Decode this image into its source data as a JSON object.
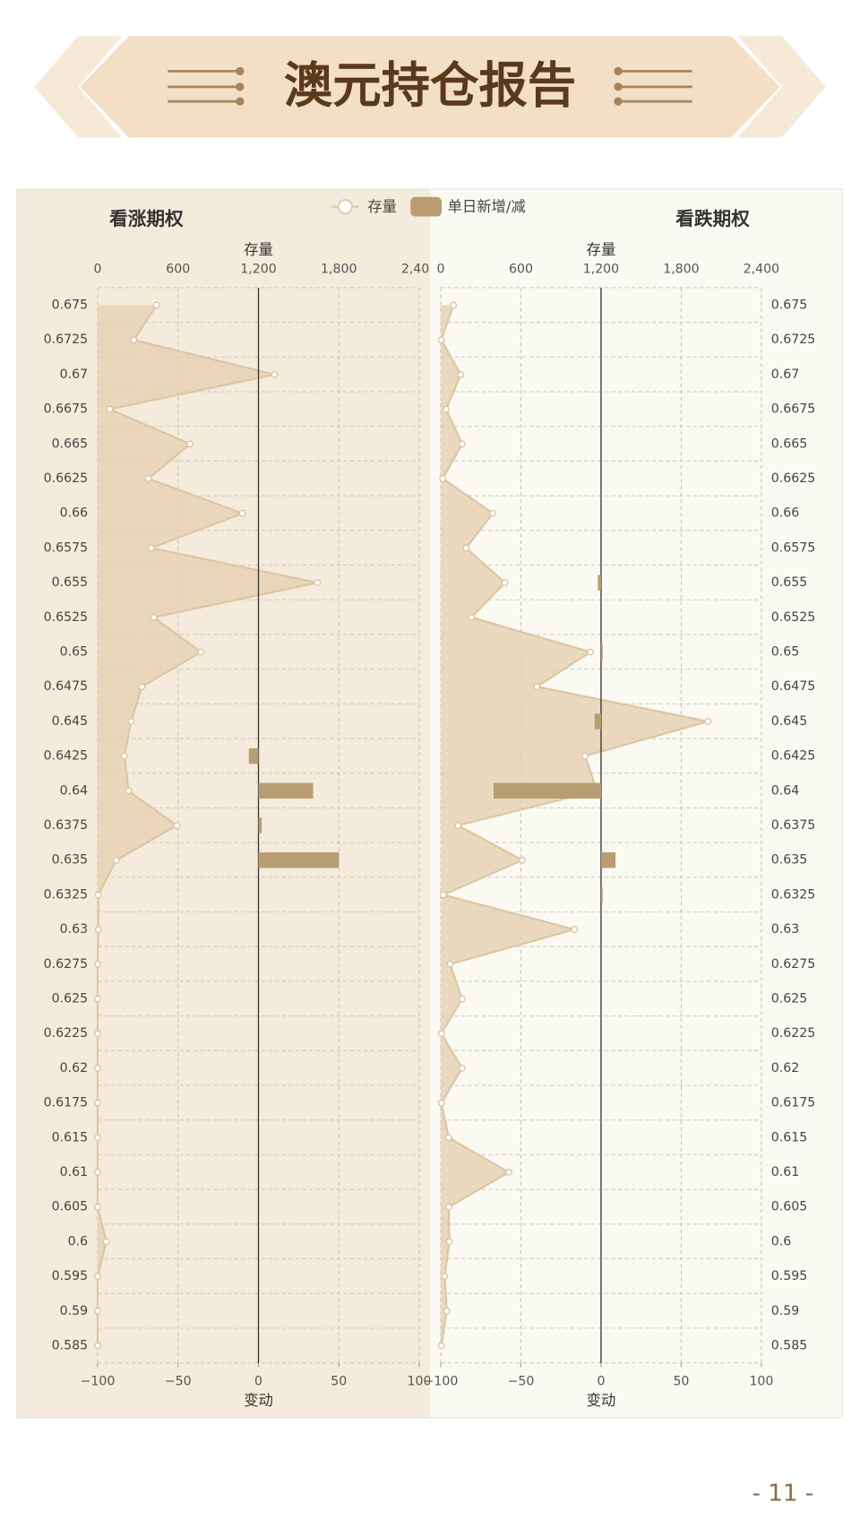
{
  "header": {
    "title": "澳元持仓报告",
    "page": "- 11 -"
  },
  "chart_data": [
    {
      "type": "combo",
      "title": "看涨期权",
      "categories": [
        "0.675",
        "0.6725",
        "0.67",
        "0.6675",
        "0.665",
        "0.6625",
        "0.66",
        "0.6575",
        "0.655",
        "0.6525",
        "0.65",
        "0.6475",
        "0.645",
        "0.6425",
        "0.64",
        "0.6375",
        "0.635",
        "0.6325",
        "0.63",
        "0.6275",
        "0.625",
        "0.6225",
        "0.62",
        "0.6175",
        "0.615",
        "0.61",
        "0.605",
        "0.6",
        "0.595",
        "0.59",
        "0.585"
      ],
      "xlabel": "存量",
      "xlim": [
        0,
        2400
      ],
      "xticks": [
        0,
        600,
        {
          "value": 1200,
          "label": "1,200"
        },
        {
          "value": 1800,
          "label": "1,800"
        },
        {
          "value": 2400,
          "label": "2,400"
        }
      ],
      "x2label": "变动",
      "x2lim": [
        -100,
        100
      ],
      "x2ticks": [
        {
          "value": -100,
          "label": "−100"
        },
        {
          "value": -50,
          "label": "−50"
        },
        0,
        50,
        100
      ],
      "category_axis": "left",
      "background": "#f5ebdc",
      "series": [
        {
          "name": "存量",
          "type": "area",
          "color": "#e6d2b5",
          "values": [
            440,
            270,
            1320,
            90,
            690,
            380,
            1080,
            400,
            1640,
            420,
            770,
            330,
            250,
            200,
            230,
            590,
            140,
            5,
            5,
            0,
            0,
            0,
            0,
            0,
            0,
            0,
            0,
            65,
            0,
            0,
            0
          ]
        },
        {
          "name": "单日新增/减",
          "type": "bar",
          "axis": "x2",
          "color": "#b99d72",
          "values": [
            0,
            0,
            0,
            0,
            0,
            0,
            0,
            0,
            0,
            0,
            0,
            0,
            0,
            -6,
            34,
            2,
            50,
            0,
            0,
            0,
            0,
            0,
            0,
            0,
            0,
            0,
            0,
            0,
            0,
            0,
            0
          ]
        }
      ]
    },
    {
      "type": "combo",
      "title": "看跌期权",
      "categories": [
        "0.675",
        "0.6725",
        "0.67",
        "0.6675",
        "0.665",
        "0.6625",
        "0.66",
        "0.6575",
        "0.655",
        "0.6525",
        "0.65",
        "0.6475",
        "0.645",
        "0.6425",
        "0.64",
        "0.6375",
        "0.635",
        "0.6325",
        "0.63",
        "0.6275",
        "0.625",
        "0.6225",
        "0.62",
        "0.6175",
        "0.615",
        "0.61",
        "0.605",
        "0.6",
        "0.595",
        "0.59",
        "0.585"
      ],
      "xlabel": "存量",
      "xlim": [
        0,
        2400
      ],
      "xticks": [
        0,
        600,
        {
          "value": 1200,
          "label": "1,200"
        },
        {
          "value": 1800,
          "label": "1,800"
        },
        {
          "value": 2400,
          "label": "2,400"
        }
      ],
      "x2label": "变动",
      "x2lim": [
        -100,
        100
      ],
      "x2ticks": [
        {
          "value": -100,
          "label": "−100"
        },
        {
          "value": -50,
          "label": "−50"
        },
        0,
        50,
        100
      ],
      "category_axis": "right",
      "background": "#fafaf3",
      "series": [
        {
          "name": "存量",
          "type": "area",
          "color": "#e6d2b5",
          "values": [
            95,
            5,
            150,
            40,
            160,
            15,
            390,
            190,
            480,
            230,
            1120,
            720,
            2000,
            1080,
            1170,
            130,
            610,
            20,
            1000,
            70,
            160,
            5,
            160,
            5,
            60,
            510,
            60,
            65,
            30,
            45,
            5
          ]
        },
        {
          "name": "单日新增/减",
          "type": "bar",
          "axis": "x2",
          "color": "#b99d72",
          "values": [
            0,
            0,
            0,
            0,
            0,
            0,
            0,
            0,
            -2,
            0,
            1,
            0,
            -4,
            0,
            -67,
            0,
            9,
            1,
            0,
            0,
            0,
            0,
            0,
            0,
            0,
            0,
            0,
            0,
            0,
            0,
            0
          ]
        }
      ]
    }
  ]
}
